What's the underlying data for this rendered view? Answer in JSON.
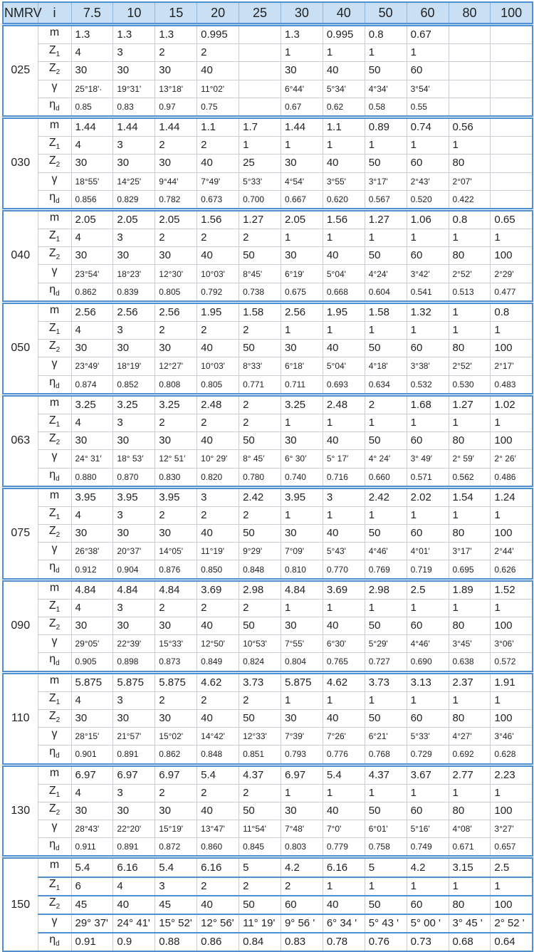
{
  "header": {
    "model": "NMRV",
    "ratio": "i",
    "ratios": [
      "7.5",
      "10",
      "15",
      "20",
      "25",
      "30",
      "40",
      "50",
      "60",
      "80",
      "100"
    ]
  },
  "row_labels": [
    {
      "main": "m",
      "sub": ""
    },
    {
      "main": "Z",
      "sub": "1"
    },
    {
      "main": "Z",
      "sub": "2"
    },
    {
      "main": "γ",
      "sub": ""
    },
    {
      "main": "η",
      "sub": "d"
    }
  ],
  "colors": {
    "header_bg": "#c9dff3",
    "frame": "#4f8fd4"
  },
  "groups": [
    {
      "model": "025",
      "rows": [
        [
          "1.3",
          "1.3",
          "1.3",
          "0.995",
          "",
          "1.3",
          "0.995",
          "0.8",
          "0.67",
          "",
          ""
        ],
        [
          "4",
          "3",
          "2",
          "2",
          "",
          "1",
          "1",
          "1",
          "1",
          "",
          ""
        ],
        [
          "30",
          "30",
          "30",
          "40",
          "",
          "30",
          "40",
          "50",
          "60",
          "",
          ""
        ],
        [
          "25°18'·",
          "19°31'",
          "13°18'",
          "11°02'",
          "",
          "6°44'",
          "5°34'",
          "4°34'",
          "3°54'",
          "",
          ""
        ],
        [
          "0.85",
          "0.83",
          "0.97",
          "0.75",
          "",
          "0.67",
          "0.62",
          "0.58",
          "0.55",
          "",
          ""
        ]
      ]
    },
    {
      "model": "030",
      "rows": [
        [
          "1.44",
          "1.44",
          "1.44",
          "1.1",
          "1.7",
          "1.44",
          "1.1",
          "0.89",
          "0.74",
          "0.56",
          ""
        ],
        [
          "4",
          "3",
          "2",
          "2",
          "1",
          "1",
          "1",
          "1",
          "1",
          "1",
          ""
        ],
        [
          "30",
          "30",
          "30",
          "40",
          "25",
          "30",
          "40",
          "50",
          "60",
          "80",
          ""
        ],
        [
          "18°55'",
          "14°25'",
          "9°44'",
          "7°49'",
          "5°33'",
          "4°54'",
          "3°55'",
          "3°17'",
          "2°43'",
          "2°07'",
          ""
        ],
        [
          "0.856",
          "0.829",
          "0.782",
          "0.673",
          "0.700",
          "0.667",
          "0.620",
          "0.567",
          "0.520",
          "0.422",
          ""
        ]
      ]
    },
    {
      "model": "040",
      "rows": [
        [
          "2.05",
          "2.05",
          "2.05",
          "1.56",
          "1.27",
          "2.05",
          "1.56",
          "1.27",
          "1.06",
          "0.8",
          "0.65"
        ],
        [
          "4",
          "3",
          "2",
          "2",
          "2",
          "1",
          "1",
          "1",
          "1",
          "1",
          "1"
        ],
        [
          "30",
          "30",
          "30",
          "40",
          "50",
          "30",
          "40",
          "50",
          "60",
          "80",
          "100"
        ],
        [
          "23°54'",
          "18°23'",
          "12°30'",
          "10°03'",
          "8°45'",
          "6°19'",
          "5°04'",
          "4°24'",
          "3°42'",
          "2°52'",
          "2°29'"
        ],
        [
          "0.862",
          "0.839",
          "0.805",
          "0.792",
          "0.738",
          "0.675",
          "0.668",
          "0.604",
          "0.541",
          "0.513",
          "0.477"
        ]
      ]
    },
    {
      "model": "050",
      "rows": [
        [
          "2.56",
          "2.56",
          "2.56",
          "1.95",
          "1.58",
          "2.56",
          "1.95",
          "1.58",
          "1.32",
          "1",
          "0.8"
        ],
        [
          "4",
          "3",
          "2",
          "2",
          "2",
          "1",
          "1",
          "1",
          "1",
          "1",
          "1"
        ],
        [
          "30",
          "30",
          "30",
          "40",
          "50",
          "30",
          "40",
          "50",
          "60",
          "80",
          "100"
        ],
        [
          "23°49'",
          "18°19'",
          "12°27'",
          "10°03'",
          "8°33'",
          "6°18'",
          "5°04'",
          "4°18'",
          "3°38'",
          "2°52'",
          "2°17'"
        ],
        [
          "0.874",
          "0.852",
          "0.808",
          "0.805",
          "0.771",
          "0.711",
          "0.693",
          "0.634",
          "0.532",
          "0.530",
          "0.483"
        ]
      ]
    },
    {
      "model": "063",
      "rows": [
        [
          "3.25",
          "3.25",
          "3.25",
          "2.48",
          "2",
          "3.25",
          "2.48",
          "2",
          "1.68",
          "1.27",
          "1.02"
        ],
        [
          "4",
          "3",
          "2",
          "2",
          "2",
          "1",
          "1",
          "1",
          "1",
          "1",
          "1"
        ],
        [
          "30",
          "30",
          "30",
          "40",
          "50",
          "30",
          "40",
          "50",
          "60",
          "80",
          "100"
        ],
        [
          "24° 31′",
          "18° 53′",
          "12° 51′",
          "10° 29′",
          "8° 45′",
          "6° 30′",
          "5° 17′",
          "4° 24′",
          "3° 49′",
          "2° 59′",
          "2° 26′"
        ],
        [
          "0.880",
          "0.870",
          "0.830",
          "0.820",
          "0.780",
          "0.740",
          "0.716",
          "0.660",
          "0.571",
          "0.562",
          "0.486"
        ]
      ]
    },
    {
      "model": "075",
      "rows": [
        [
          "3.95",
          "3.95",
          "3.95",
          "3",
          "2.42",
          "3.95",
          "3",
          "2.42",
          "2.02",
          "1.54",
          "1.24"
        ],
        [
          "4",
          "3",
          "2",
          "2",
          "2",
          "1",
          "1",
          "1",
          "1",
          "1",
          "1"
        ],
        [
          "30",
          "30",
          "30",
          "40",
          "50",
          "30",
          "40",
          "50",
          "60",
          "80",
          "100"
        ],
        [
          "26°38'",
          "20°37'",
          "14°05'",
          "11°19'",
          "9°29'",
          "7°09'",
          "5°43'",
          "4°46'",
          "4°01'",
          "3°17'",
          "2°44'"
        ],
        [
          "0.912",
          "0.904",
          "0.876",
          "0.850",
          "0.848",
          "0.810",
          "0.770",
          "0.769",
          "0.719",
          "0.695",
          "0.626"
        ]
      ]
    },
    {
      "model": "090",
      "rows": [
        [
          "4.84",
          "4.84",
          "4.84",
          "3.69",
          "2.98",
          "4.84",
          "3.69",
          "2.98",
          "2.5",
          "1.89",
          "1.52"
        ],
        [
          "4",
          "3",
          "2",
          "2",
          "2",
          "1",
          "1",
          "1",
          "1",
          "1",
          "1"
        ],
        [
          "30",
          "30",
          "30",
          "40",
          "50",
          "30",
          "40",
          "50",
          "60",
          "80",
          "100"
        ],
        [
          "29°05'",
          "22°39'",
          "15°33'",
          "12°50'",
          "10°53'",
          "7°55'",
          "6°30'",
          "5°29'",
          "4°46'",
          "3°45'",
          "3°06'"
        ],
        [
          "0.905",
          "0.898",
          "0.873",
          "0.849",
          "0.824",
          "0.804",
          "0.765",
          "0.727",
          "0.690",
          "0.638",
          "0.572"
        ]
      ]
    },
    {
      "model": "110",
      "rows": [
        [
          "5.875",
          "5.875",
          "5.875",
          "4.62",
          "3.73",
          "5.875",
          "4.62",
          "3.73",
          "3.13",
          "2.37",
          "1.91"
        ],
        [
          "4",
          "3",
          "2",
          "2",
          "2",
          "1",
          "1",
          "1",
          "1",
          "1",
          "1"
        ],
        [
          "30",
          "30",
          "30",
          "40",
          "50",
          "30",
          "40",
          "50",
          "60",
          "80",
          "100"
        ],
        [
          "28°15'",
          "21°57'",
          "15°02'",
          "14°42'",
          "12°33'",
          "7°39'",
          "7°26'",
          "6°21'",
          "5°33'",
          "4°27'",
          "3°46'"
        ],
        [
          "0.901",
          "0.891",
          "0.862",
          "0.848",
          "0.851",
          "0.793",
          "0.776",
          "0.768",
          "0.729",
          "0.692",
          "0.628"
        ]
      ]
    },
    {
      "model": "130",
      "rows": [
        [
          "6.97",
          "6.97",
          "6.97",
          "5.4",
          "4.37",
          "6.97",
          "5.4",
          "4.37",
          "3.67",
          "2.77",
          "2.23"
        ],
        [
          "4",
          "3",
          "2",
          "2",
          "2",
          "1",
          "1",
          "1",
          "1",
          "1",
          "1"
        ],
        [
          "30",
          "30",
          "30",
          "40",
          "50",
          "30",
          "40",
          "50",
          "60",
          "80",
          "100"
        ],
        [
          "28°43'",
          "22°20'",
          "15°19'",
          "13°47'",
          "11°54'",
          "7°48'",
          "7°0'",
          "6°01'",
          "5°16'",
          "4°08'",
          "3°27'"
        ],
        [
          "0.911",
          "0.891",
          "0.872",
          "0.860",
          "0.845",
          "0.803",
          "0.779",
          "0.758",
          "0.749",
          "0.671",
          "0.657"
        ]
      ]
    },
    {
      "model": "150",
      "rows": [
        [
          "5.4",
          "6.16",
          "5.4",
          "6.16",
          "5",
          "4.2",
          "6.16",
          "5",
          "4.2",
          "3.15",
          "2.5"
        ],
        [
          "6",
          "4",
          "3",
          "2",
          "2",
          "2",
          "1",
          "1",
          "1",
          "1",
          "1"
        ],
        [
          "45",
          "40",
          "45",
          "40",
          "50",
          "60",
          "40",
          "50",
          "60",
          "80",
          "100"
        ],
        [
          "29° 37'",
          "24° 41'",
          "15° 52'",
          "12° 56'",
          "11° 19'",
          "9°  56 '",
          "6°  34 '",
          "5°  43 '",
          "5°  00 '",
          "3°  45 '",
          "2°  52 '"
        ],
        [
          "0.91",
          "0.9",
          "0.88",
          "0.86",
          "0.84",
          "0.83",
          "0.78",
          "0.76",
          "0.73",
          "0.68",
          "0.64"
        ]
      ]
    }
  ]
}
